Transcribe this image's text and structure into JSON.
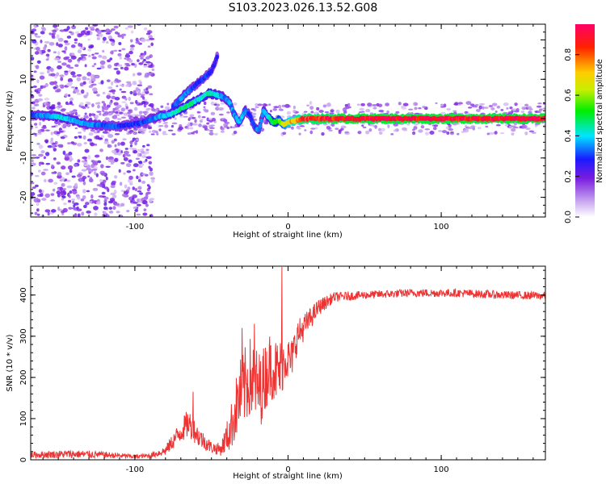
{
  "title": "S103.2023.026.13.52.G08",
  "chart_data": [
    {
      "type": "heatmap",
      "xlabel": "Height of straight line (km)",
      "ylabel": "Frequency (Hz)",
      "xlim": [
        -168,
        168
      ],
      "ylim": [
        -25,
        24
      ],
      "xticks": [
        -100,
        0,
        100
      ],
      "yticks": [
        -20,
        -10,
        0,
        10,
        20
      ],
      "colorbar": {
        "label": "Normalized spectral amplitude",
        "range": [
          0,
          0.95
        ],
        "ticks": [
          0.0,
          0.2,
          0.4,
          0.6,
          0.8
        ]
      },
      "ridge": {
        "x": [
          -168,
          -150,
          -130,
          -110,
          -95,
          -85,
          -78,
          -72,
          -65,
          -58,
          -52,
          -46,
          -42,
          -38,
          -35,
          -32,
          -28,
          -25,
          -22,
          -19,
          -16,
          -13,
          -10,
          -6,
          -3,
          0,
          10,
          40,
          80,
          120,
          168
        ],
        "freq": [
          1,
          0.5,
          -1.5,
          -2,
          -1,
          0.5,
          1,
          2,
          3.5,
          5,
          6.5,
          6,
          5.5,
          4,
          1,
          -1,
          2,
          1,
          -2,
          -3,
          2,
          0.5,
          -1,
          -0.5,
          -1.5,
          -1,
          0,
          0,
          0,
          0,
          0
        ],
        "amplitude": [
          0.3,
          0.4,
          0.35,
          0.3,
          0.3,
          0.35,
          0.4,
          0.45,
          0.45,
          0.4,
          0.45,
          0.4,
          0.35,
          0.35,
          0.35,
          0.4,
          0.35,
          0.3,
          0.3,
          0.35,
          0.35,
          0.4,
          0.5,
          0.55,
          0.6,
          0.7,
          0.85,
          0.9,
          0.9,
          0.9,
          0.9
        ]
      },
      "branch": {
        "x": [
          -75,
          -68,
          -62,
          -56,
          -50,
          -46
        ],
        "freq": [
          3,
          6,
          8,
          10,
          12,
          16
        ],
        "amplitude": [
          0.3,
          0.35,
          0.3,
          0.3,
          0.28,
          0.25
        ]
      },
      "noise": {
        "x_range": [
          -168,
          -88
        ],
        "amplitude": 0.15
      }
    },
    {
      "type": "line",
      "xlabel": "Height of straight line (km)",
      "ylabel": "SNR (10 * v/v)",
      "xlim": [
        -168,
        168
      ],
      "ylim": [
        0,
        470
      ],
      "xticks": [
        -100,
        0,
        100
      ],
      "yticks": [
        0,
        100,
        200,
        300,
        400
      ],
      "color": "#ee3333",
      "profile": {
        "x": [
          -168,
          -140,
          -120,
          -100,
          -90,
          -80,
          -72,
          -65,
          -58,
          -50,
          -44,
          -38,
          -32,
          -25,
          -18,
          -12,
          -6,
          -2,
          2,
          6,
          12,
          20,
          30,
          50,
          80,
          110,
          140,
          168
        ],
        "mean": [
          12,
          14,
          12,
          8,
          10,
          22,
          60,
          90,
          55,
          30,
          25,
          70,
          150,
          200,
          170,
          230,
          210,
          250,
          240,
          300,
          330,
          370,
          395,
          400,
          405,
          405,
          400,
          398
        ],
        "noise": [
          8,
          10,
          8,
          5,
          6,
          12,
          25,
          35,
          25,
          15,
          15,
          50,
          90,
          100,
          90,
          80,
          80,
          60,
          50,
          40,
          30,
          20,
          12,
          10,
          10,
          10,
          10,
          10
        ]
      },
      "spikes": [
        {
          "x": -62,
          "y": 165
        },
        {
          "x": -4,
          "y": 468
        },
        {
          "x": -22,
          "y": 330
        },
        {
          "x": -30,
          "y": 320
        }
      ]
    }
  ]
}
